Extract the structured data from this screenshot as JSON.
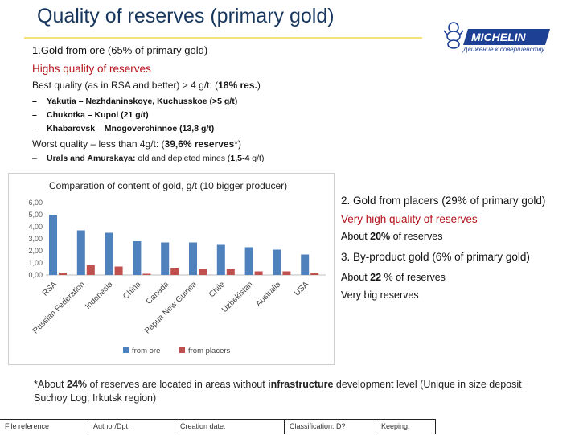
{
  "slide": {
    "title": "Quality of reserves (primary gold)",
    "section1_heading": "1.Gold from ore (65% of primary gold)",
    "section1_subheading": "Highs quality of reserves",
    "best": {
      "prefix": "Best quality (as in RSA and better) > 4 g/t: (",
      "bold": "18% res.",
      "suffix": ")"
    },
    "best_items": [
      {
        "dash": "–",
        "text": "Yakutia – Nezhdaninskoye, Kuchusskoe (>5 g/t)"
      },
      {
        "dash": "–",
        "text": "Chukotka – Kupol (21 g/t)"
      },
      {
        "dash": "–",
        "text": "Khabarovsk – Mnogoverchinnoe (13,8 g/t)"
      }
    ],
    "worst": {
      "prefix": "Worst quality – less than 4g/t: (",
      "bold": "39,6% reserves",
      "suffix": "*)"
    },
    "worst_item": {
      "dash": "–",
      "bold": "Urals and Amurskaya:",
      "text": " old and depleted mines (",
      "bold2": "1,5-4",
      "text2": " g/t)"
    },
    "right": {
      "placers_heading": "2. Gold from placers (29% of primary gold)",
      "placers_quality": "Very high quality of reserves",
      "placers_about": {
        "prefix": "About ",
        "bold": "20%",
        "suffix": " of reserves"
      },
      "byproduct_heading": "3. By-product gold (6% of primary gold)",
      "byproduct_about": {
        "prefix": "About ",
        "bold": "22",
        "suffix": " % of reserves"
      },
      "byproduct_note": "Very big reserves"
    },
    "footnote": {
      "p1": "*About ",
      "b1": "24%",
      "p2": " of reserves are located in areas without ",
      "b2": "infrastructure",
      "p3": " development level (Unique in size deposit Suchoy Log, Irkutsk region)"
    },
    "logo": {
      "brand": "MICHELIN",
      "tagline": "Движение к совершенству"
    },
    "footer": [
      "File reference",
      "Author/Dpt:",
      "Creation date:",
      "Classification: D?",
      "Keeping:"
    ]
  },
  "chart_data": {
    "type": "bar",
    "title": "Comparation of content of gold, g/t (10 bigger producer)",
    "categories": [
      "RSA",
      "Russian Federation",
      "Indonesia",
      "China",
      "Canada",
      "Papua New Guinea",
      "Chile",
      "Uzbekistan",
      "Australia",
      "USA"
    ],
    "series": [
      {
        "name": "from ore",
        "color": "#4f81bd",
        "values": [
          5.0,
          3.7,
          3.5,
          2.8,
          2.7,
          2.7,
          2.5,
          2.3,
          2.1,
          1.7
        ]
      },
      {
        "name": "from placers",
        "color": "#c0504d",
        "values": [
          0.2,
          0.8,
          0.7,
          0.1,
          0.6,
          0.5,
          0.5,
          0.3,
          0.3,
          0.2
        ]
      }
    ],
    "yticks": [
      "0,00",
      "1,00",
      "2,00",
      "3,00",
      "4,00",
      "5,00",
      "6,00"
    ],
    "ylim": [
      0,
      6
    ],
    "legend": "bottom"
  }
}
